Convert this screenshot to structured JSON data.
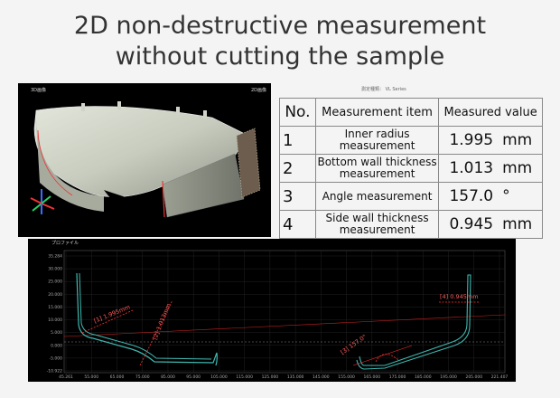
{
  "title": {
    "line1": "2D non-destructive measurement",
    "line2": "without cutting the sample"
  },
  "viewer3d": {
    "label_left": "3D画像",
    "label_right": "2D画像"
  },
  "header_strip": "測定種類：    VL Series",
  "table": {
    "headers": {
      "no": "No.",
      "item": "Measurement item",
      "value": "Measured value"
    },
    "rows": [
      {
        "no": "1",
        "item_l1": "Inner radius",
        "item_l2": "measurement",
        "value": "1.995",
        "unit": "mm"
      },
      {
        "no": "2",
        "item_l1": "Bottom wall thickness",
        "item_l2": "measurement",
        "value": "1.013",
        "unit": "mm"
      },
      {
        "no": "3",
        "item_l1": "Angle measurement",
        "item_l2": "",
        "value": "157.0",
        "unit": "°"
      },
      {
        "no": "4",
        "item_l1": "Side wall thickness",
        "item_l2": "measurement",
        "value": "0.945",
        "unit": "mm"
      }
    ]
  },
  "profile": {
    "title": "プロファイル",
    "y_ticks": [
      "35.284",
      "30.000",
      "25.000",
      "20.000",
      "15.000",
      "10.000",
      "5.000",
      "0.000",
      "-5.000",
      "-10.922"
    ],
    "x_ticks": [
      "45.261",
      "55.000",
      "65.000",
      "75.000",
      "85.000",
      "95.000",
      "105.000",
      "115.000",
      "125.000",
      "135.000",
      "145.000",
      "155.000",
      "165.000",
      "175.000",
      "185.000",
      "195.000",
      "205.000",
      "221.407"
    ],
    "annotations": {
      "m1": "[1] 1.995mm",
      "m2": "[2] 1.013mm",
      "m3": "[3] 157.0°",
      "m4": "[4] 0.945mm"
    },
    "colors": {
      "profile_line": "#3fb7b0",
      "measure": "#ff3030",
      "grid": "#2a2a2a"
    }
  }
}
